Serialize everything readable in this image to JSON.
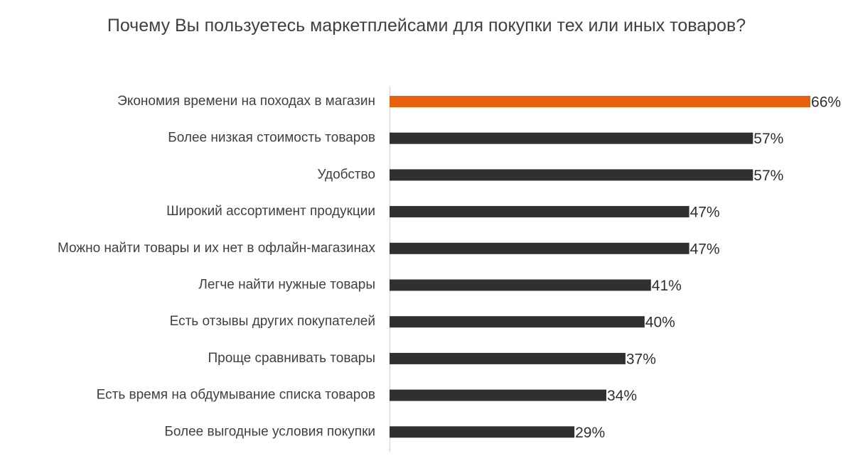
{
  "chart_data": {
    "type": "bar",
    "orientation": "horizontal",
    "title": "Почему Вы пользуетесь маркетплейсами для покупки тех или иных товаров?",
    "categories": [
      "Экономия времени на походах в магазин",
      "Более низкая стоимость товаров",
      "Удобство",
      "Широкий ассортимент продукции",
      "Можно найти товары и их нет в офлайн-магазинах",
      "Легче найти нужные товары",
      "Есть отзывы других покупателей",
      "Проще сравнивать товары",
      "Есть время на обдумывание списка товаров",
      "Более выгодные условия покупки"
    ],
    "values": [
      66,
      57,
      57,
      47,
      47,
      41,
      40,
      37,
      34,
      29
    ],
    "value_labels": [
      "66%",
      "57%",
      "57%",
      "47%",
      "47%",
      "41%",
      "40%",
      "37%",
      "34%",
      "29%"
    ],
    "colors": [
      "#e8600c",
      "#303030",
      "#303030",
      "#303030",
      "#303030",
      "#303030",
      "#303030",
      "#303030",
      "#303030",
      "#303030"
    ]
  }
}
